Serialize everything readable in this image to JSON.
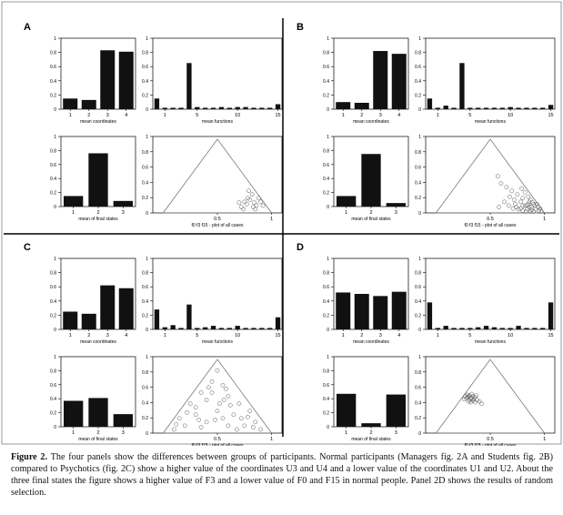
{
  "figure": {
    "caption_label": "Figure 2.",
    "caption_text": "The four panels show the differences between groups of participants. Normal participants (Managers fig. 2A and Students fig. 2B) compared to Psychotics (fig. 2C) show a higher value of the coordinates U3 and U4 and a lower value of the coordinates U1 and U2. About the three final states the figure shows a higher value of F3 and a lower value of F0 and F15 in normal people. Panel 2D shows the results of random selection."
  },
  "chart_data": [
    {
      "panel": "A",
      "mean_coordinates": {
        "type": "bar",
        "categories": [
          "1",
          "2",
          "3",
          "4"
        ],
        "values": [
          0.15,
          0.13,
          0.83,
          0.81
        ],
        "ylim": [
          0,
          1
        ],
        "yticks": [
          "0",
          "0.2",
          "0.4",
          "0.6",
          "0.8",
          "1"
        ],
        "xlabel": "mean coordinates"
      },
      "mean_functions": {
        "type": "bar",
        "categories": [
          "0",
          "1",
          "2",
          "3",
          "4",
          "5",
          "6",
          "7",
          "8",
          "9",
          "10",
          "11",
          "12",
          "13",
          "14",
          "15"
        ],
        "xticklabels": [
          "1",
          "5",
          "10",
          "15"
        ],
        "values": [
          0.15,
          0.02,
          0.02,
          0.02,
          0.65,
          0.03,
          0.02,
          0.02,
          0.03,
          0.02,
          0.03,
          0.03,
          0.02,
          0.02,
          0.02,
          0.07
        ],
        "ylim": [
          0,
          1
        ],
        "yticks": [
          "0",
          "0.2",
          "0.4",
          "0.6",
          "0.8",
          "1"
        ],
        "xlabel": "mean functions"
      },
      "mean_final_states": {
        "type": "bar",
        "categories": [
          "1",
          "2",
          "3"
        ],
        "values": [
          0.15,
          0.76,
          0.08
        ],
        "ylim": [
          0,
          1
        ],
        "yticks": [
          "0",
          "0.2",
          "0.4",
          "0.6",
          "0.8",
          "1"
        ],
        "xlabel": "mean of final states"
      },
      "simplex": {
        "type": "scatter",
        "xticklabels": [
          "0.5",
          "1"
        ],
        "xlabel": "f0 f3 f15 - plot of all cases",
        "points": [
          [
            0.77,
            0.12
          ],
          [
            0.8,
            0.18
          ],
          [
            0.84,
            0.14
          ],
          [
            0.82,
            0.25
          ],
          [
            0.78,
            0.2
          ],
          [
            0.86,
            0.1
          ],
          [
            0.72,
            0.08
          ],
          [
            0.75,
            0.15
          ],
          [
            0.88,
            0.2
          ],
          [
            0.83,
            0.08
          ],
          [
            0.9,
            0.15
          ],
          [
            0.7,
            0.14
          ],
          [
            0.79,
            0.3
          ],
          [
            0.85,
            0.05
          ],
          [
            0.74,
            0.05
          ],
          [
            0.92,
            0.1
          ]
        ]
      }
    },
    {
      "panel": "B",
      "mean_coordinates": {
        "type": "bar",
        "categories": [
          "1",
          "2",
          "3",
          "4"
        ],
        "values": [
          0.1,
          0.09,
          0.82,
          0.78
        ],
        "ylim": [
          0,
          1
        ],
        "yticks": [
          "0",
          "0.2",
          "0.4",
          "0.6",
          "0.8",
          "1"
        ],
        "xlabel": "mean coordinates"
      },
      "mean_functions": {
        "type": "bar",
        "categories": [
          "0",
          "1",
          "2",
          "3",
          "4",
          "5",
          "6",
          "7",
          "8",
          "9",
          "10",
          "11",
          "12",
          "13",
          "14",
          "15"
        ],
        "xticklabels": [
          "1",
          "5",
          "10",
          "15"
        ],
        "values": [
          0.15,
          0.02,
          0.05,
          0.02,
          0.65,
          0.02,
          0.02,
          0.02,
          0.02,
          0.02,
          0.03,
          0.02,
          0.02,
          0.02,
          0.02,
          0.06
        ],
        "ylim": [
          0,
          1
        ],
        "yticks": [
          "0",
          "0.2",
          "0.4",
          "0.6",
          "0.8",
          "1"
        ],
        "xlabel": "mean functions"
      },
      "mean_final_states": {
        "type": "bar",
        "categories": [
          "1",
          "2",
          "3"
        ],
        "values": [
          0.15,
          0.75,
          0.05
        ],
        "ylim": [
          0,
          1
        ],
        "yticks": [
          "0",
          "0.2",
          "0.4",
          "0.6",
          "0.8",
          "1"
        ],
        "xlabel": "mean of final states"
      },
      "simplex": {
        "type": "scatter",
        "xticklabels": [
          "0.5",
          "1"
        ],
        "xlabel": "f0 f3 f15 - plot of all cases",
        "points": [
          [
            0.82,
            0.1
          ],
          [
            0.85,
            0.12
          ],
          [
            0.88,
            0.08
          ],
          [
            0.9,
            0.12
          ],
          [
            0.86,
            0.15
          ],
          [
            0.84,
            0.05
          ],
          [
            0.92,
            0.05
          ],
          [
            0.94,
            0.08
          ],
          [
            0.8,
            0.2
          ],
          [
            0.78,
            0.15
          ],
          [
            0.75,
            0.25
          ],
          [
            0.72,
            0.18
          ],
          [
            0.7,
            0.3
          ],
          [
            0.68,
            0.22
          ],
          [
            0.65,
            0.35
          ],
          [
            0.6,
            0.4
          ],
          [
            0.74,
            0.08
          ],
          [
            0.76,
            0.05
          ],
          [
            0.95,
            0.03
          ],
          [
            0.9,
            0.02
          ],
          [
            0.87,
            0.02
          ],
          [
            0.83,
            0.02
          ],
          [
            0.8,
            0.03
          ],
          [
            0.91,
            0.1
          ],
          [
            0.89,
            0.14
          ],
          [
            0.87,
            0.18
          ],
          [
            0.85,
            0.22
          ],
          [
            0.82,
            0.28
          ],
          [
            0.79,
            0.33
          ],
          [
            0.96,
            0.06
          ],
          [
            0.93,
            0.12
          ],
          [
            0.88,
            0.04
          ],
          [
            0.97,
            0.02
          ],
          [
            0.86,
            0.08
          ],
          [
            0.84,
            0.1
          ],
          [
            0.8,
            0.1
          ],
          [
            0.78,
            0.06
          ],
          [
            0.73,
            0.12
          ],
          [
            0.71,
            0.06
          ],
          [
            0.67,
            0.1
          ],
          [
            0.63,
            0.15
          ],
          [
            0.58,
            0.08
          ],
          [
            0.57,
            0.5
          ]
        ]
      }
    },
    {
      "panel": "C",
      "mean_coordinates": {
        "type": "bar",
        "categories": [
          "1",
          "2",
          "3",
          "4"
        ],
        "values": [
          0.25,
          0.22,
          0.62,
          0.58
        ],
        "ylim": [
          0,
          1
        ],
        "yticks": [
          "0",
          "0.2",
          "0.4",
          "0.6",
          "0.8",
          "1"
        ],
        "xlabel": "mean coordinates"
      },
      "mean_functions": {
        "type": "bar",
        "categories": [
          "0",
          "1",
          "2",
          "3",
          "4",
          "5",
          "6",
          "7",
          "8",
          "9",
          "10",
          "11",
          "12",
          "13",
          "14",
          "15"
        ],
        "xticklabels": [
          "1",
          "5",
          "10",
          "15"
        ],
        "values": [
          0.28,
          0.03,
          0.06,
          0.02,
          0.35,
          0.02,
          0.03,
          0.05,
          0.02,
          0.02,
          0.05,
          0.02,
          0.02,
          0.02,
          0.02,
          0.17
        ],
        "ylim": [
          0,
          1
        ],
        "yticks": [
          "0",
          "0.2",
          "0.4",
          "0.6",
          "0.8",
          "1"
        ],
        "xlabel": "mean functions"
      },
      "mean_final_states": {
        "type": "bar",
        "categories": [
          "1",
          "2",
          "3"
        ],
        "values": [
          0.37,
          0.41,
          0.18
        ],
        "ylim": [
          0,
          1
        ],
        "yticks": [
          "0",
          "0.2",
          "0.4",
          "0.6",
          "0.8",
          "1"
        ],
        "xlabel": "mean of final states"
      },
      "simplex": {
        "type": "scatter",
        "xticklabels": [
          "0.5",
          "1"
        ],
        "xlabel": "f0 f3 f15 - plot of all cases",
        "points": [
          [
            0.5,
            0.85
          ],
          [
            0.45,
            0.7
          ],
          [
            0.55,
            0.65
          ],
          [
            0.35,
            0.55
          ],
          [
            0.6,
            0.5
          ],
          [
            0.25,
            0.4
          ],
          [
            0.4,
            0.45
          ],
          [
            0.7,
            0.4
          ],
          [
            0.8,
            0.3
          ],
          [
            0.15,
            0.2
          ],
          [
            0.3,
            0.25
          ],
          [
            0.5,
            0.3
          ],
          [
            0.65,
            0.25
          ],
          [
            0.85,
            0.15
          ],
          [
            0.2,
            0.1
          ],
          [
            0.4,
            0.15
          ],
          [
            0.55,
            0.2
          ],
          [
            0.75,
            0.1
          ],
          [
            0.9,
            0.05
          ],
          [
            0.1,
            0.05
          ],
          [
            0.35,
            0.08
          ],
          [
            0.6,
            0.1
          ],
          [
            0.45,
            0.55
          ],
          [
            0.52,
            0.4
          ],
          [
            0.3,
            0.35
          ],
          [
            0.62,
            0.38
          ],
          [
            0.72,
            0.2
          ],
          [
            0.22,
            0.28
          ],
          [
            0.48,
            0.18
          ],
          [
            0.68,
            0.05
          ],
          [
            0.58,
            0.6
          ],
          [
            0.42,
            0.62
          ],
          [
            0.78,
            0.22
          ],
          [
            0.12,
            0.12
          ],
          [
            0.33,
            0.18
          ],
          [
            0.56,
            0.45
          ],
          [
            0.83,
            0.08
          ]
        ]
      }
    },
    {
      "panel": "D",
      "mean_coordinates": {
        "type": "bar",
        "categories": [
          "1",
          "2",
          "3",
          "4"
        ],
        "values": [
          0.52,
          0.5,
          0.47,
          0.53
        ],
        "ylim": [
          0,
          1
        ],
        "yticks": [
          "0",
          "0.2",
          "0.4",
          "0.6",
          "0.8",
          "1"
        ],
        "xlabel": "mean coordinates"
      },
      "mean_functions": {
        "type": "bar",
        "categories": [
          "0",
          "1",
          "2",
          "3",
          "4",
          "5",
          "6",
          "7",
          "8",
          "9",
          "10",
          "11",
          "12",
          "13",
          "14",
          "15"
        ],
        "xticklabels": [
          "1",
          "5",
          "10",
          "15"
        ],
        "values": [
          0.38,
          0.02,
          0.05,
          0.02,
          0.02,
          0.02,
          0.03,
          0.05,
          0.03,
          0.02,
          0.02,
          0.05,
          0.02,
          0.02,
          0.02,
          0.38
        ],
        "ylim": [
          0,
          1
        ],
        "yticks": [
          "0",
          "0.2",
          "0.4",
          "0.6",
          "0.8",
          "1"
        ],
        "xlabel": "mean functions"
      },
      "mean_final_states": {
        "type": "bar",
        "categories": [
          "1",
          "2",
          "3"
        ],
        "values": [
          0.47,
          0.05,
          0.46
        ],
        "ylim": [
          0,
          1
        ],
        "yticks": [
          "0",
          "0.2",
          "0.4",
          "0.6",
          "0.8",
          "1"
        ],
        "xlabel": "mean of final states"
      },
      "simplex": {
        "type": "scatter",
        "xticklabels": [
          "0.5",
          "1"
        ],
        "xlabel": "f0 f3 f15 - plot of all cases",
        "points": [
          [
            0.3,
            0.5
          ],
          [
            0.32,
            0.48
          ],
          [
            0.28,
            0.47
          ],
          [
            0.34,
            0.5
          ],
          [
            0.31,
            0.45
          ],
          [
            0.29,
            0.52
          ],
          [
            0.35,
            0.46
          ],
          [
            0.33,
            0.53
          ],
          [
            0.27,
            0.5
          ],
          [
            0.36,
            0.49
          ],
          [
            0.3,
            0.43
          ],
          [
            0.38,
            0.45
          ],
          [
            0.32,
            0.42
          ],
          [
            0.4,
            0.43
          ],
          [
            0.26,
            0.46
          ],
          [
            0.34,
            0.44
          ],
          [
            0.37,
            0.51
          ],
          [
            0.29,
            0.49
          ],
          [
            0.33,
            0.47
          ],
          [
            0.31,
            0.51
          ],
          [
            0.42,
            0.4
          ],
          [
            0.36,
            0.42
          ]
        ]
      }
    }
  ]
}
